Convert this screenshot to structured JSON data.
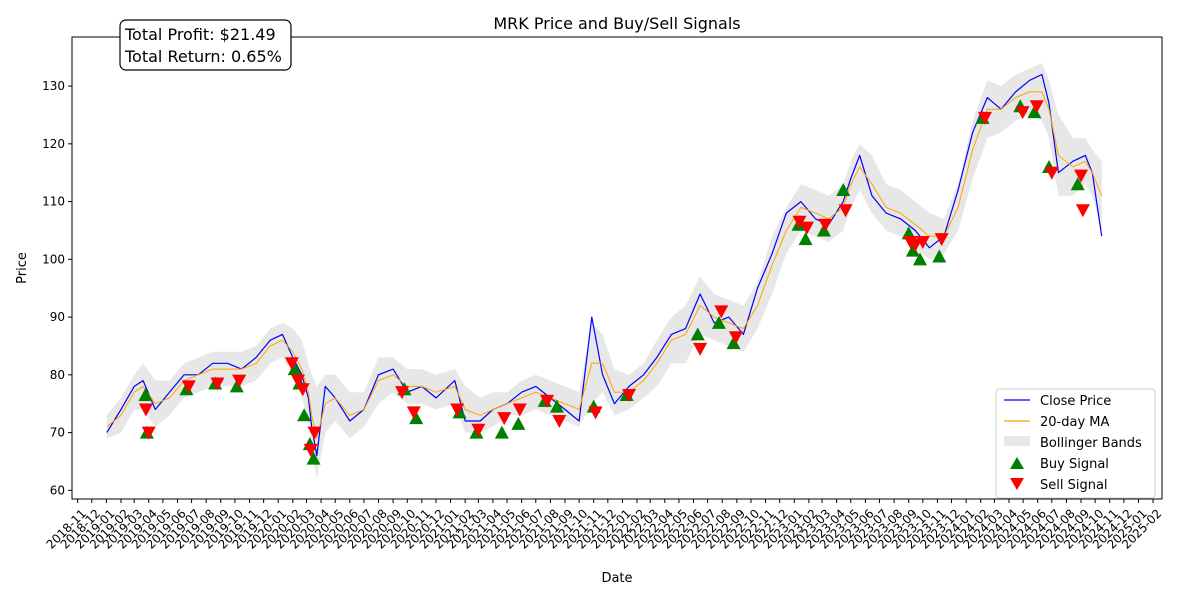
{
  "chart_data": {
    "type": "line",
    "title": "MRK Price and Buy/Sell Signals",
    "xlabel": "Date",
    "ylabel": "Price",
    "ylim": [
      58.5,
      138.5
    ],
    "yticks": [
      60,
      70,
      80,
      90,
      100,
      110,
      120,
      130
    ],
    "xlim": [
      "2018-10-20",
      "2025-02-20"
    ],
    "xticks": [
      "2018-11",
      "2018-12",
      "2019-01",
      "2019-02",
      "2019-03",
      "2019-04",
      "2019-05",
      "2019-06",
      "2019-07",
      "2019-08",
      "2019-09",
      "2019-10",
      "2019-11",
      "2019-12",
      "2020-01",
      "2020-02",
      "2020-03",
      "2020-04",
      "2020-05",
      "2020-06",
      "2020-07",
      "2020-08",
      "2020-09",
      "2020-10",
      "2020-11",
      "2020-12",
      "2021-01",
      "2021-02",
      "2021-03",
      "2021-04",
      "2021-05",
      "2021-06",
      "2021-07",
      "2021-08",
      "2021-09",
      "2021-10",
      "2021-11",
      "2021-12",
      "2022-01",
      "2022-02",
      "2022-03",
      "2022-04",
      "2022-05",
      "2022-06",
      "2022-07",
      "2022-08",
      "2022-09",
      "2022-10",
      "2022-11",
      "2022-12",
      "2023-01",
      "2023-02",
      "2023-03",
      "2023-04",
      "2023-05",
      "2023-06",
      "2023-07",
      "2023-08",
      "2023-09",
      "2023-10",
      "2023-11",
      "2023-12",
      "2024-01",
      "2024-02",
      "2024-03",
      "2024-04",
      "2024-05",
      "2024-06",
      "2024-07",
      "2024-08",
      "2024-09",
      "2024-10",
      "2024-11",
      "2024-12",
      "2025-01",
      "2025-02"
    ],
    "grid": false,
    "legend_position": "lower right",
    "summary": {
      "total_profit": "Total Profit: $21.49",
      "total_return": "Total Return: 0.65%"
    },
    "series": [
      {
        "name": "Close Price",
        "kind": "line",
        "color": "#0000ff",
        "x": [
          "2019-01-02",
          "2019-02-01",
          "2019-03-01",
          "2019-03-20",
          "2019-04-15",
          "2019-05-15",
          "2019-06-15",
          "2019-07-15",
          "2019-08-15",
          "2019-09-15",
          "2019-10-15",
          "2019-11-15",
          "2019-12-15",
          "2020-01-10",
          "2020-02-01",
          "2020-02-20",
          "2020-03-05",
          "2020-03-12",
          "2020-03-23",
          "2020-04-10",
          "2020-05-01",
          "2020-06-01",
          "2020-07-01",
          "2020-08-01",
          "2020-09-01",
          "2020-10-01",
          "2020-11-01",
          "2020-12-01",
          "2021-01-10",
          "2021-02-01",
          "2021-03-05",
          "2021-04-01",
          "2021-05-01",
          "2021-06-01",
          "2021-07-01",
          "2021-08-01",
          "2021-09-01",
          "2021-10-01",
          "2021-10-28",
          "2021-11-20",
          "2021-12-15",
          "2022-01-15",
          "2022-02-15",
          "2022-03-15",
          "2022-04-15",
          "2022-05-15",
          "2022-06-15",
          "2022-07-15",
          "2022-08-15",
          "2022-09-15",
          "2022-10-15",
          "2022-11-15",
          "2022-12-15",
          "2023-01-15",
          "2023-02-15",
          "2023-03-15",
          "2023-04-15",
          "2023-05-01",
          "2023-05-20",
          "2023-06-15",
          "2023-07-15",
          "2023-08-15",
          "2023-09-15",
          "2023-10-15",
          "2023-11-15",
          "2023-12-15",
          "2024-01-15",
          "2024-02-15",
          "2024-03-15",
          "2024-04-15",
          "2024-05-15",
          "2024-06-10",
          "2024-06-25",
          "2024-07-15",
          "2024-08-15",
          "2024-09-10",
          "2024-09-25",
          "2024-10-15"
        ],
        "values": [
          70,
          74,
          78,
          79,
          74,
          77,
          80,
          80,
          82,
          82,
          81,
          83,
          86,
          87,
          83,
          80,
          76,
          71,
          66,
          78,
          76,
          72,
          74,
          80,
          81,
          77,
          78,
          76,
          79,
          72,
          72,
          74,
          75,
          77,
          78,
          76,
          74,
          72,
          90,
          80,
          75,
          78,
          80,
          83,
          87,
          88,
          94,
          89,
          90,
          87,
          95,
          101,
          108,
          110,
          107,
          106,
          110,
          114,
          118,
          111,
          108,
          107,
          105,
          102,
          104,
          112,
          122,
          128,
          126,
          129,
          131,
          132,
          127,
          115,
          117,
          118,
          115,
          104
        ]
      },
      {
        "name": "20-day MA",
        "kind": "line",
        "color": "#ffa500",
        "x": [
          "2019-01-02",
          "2019-02-01",
          "2019-03-01",
          "2019-03-20",
          "2019-04-15",
          "2019-05-15",
          "2019-06-15",
          "2019-07-15",
          "2019-08-15",
          "2019-09-15",
          "2019-10-15",
          "2019-11-15",
          "2019-12-15",
          "2020-01-10",
          "2020-02-01",
          "2020-02-20",
          "2020-03-05",
          "2020-03-12",
          "2020-03-23",
          "2020-04-10",
          "2020-05-01",
          "2020-06-01",
          "2020-07-01",
          "2020-08-01",
          "2020-09-01",
          "2020-10-01",
          "2020-11-01",
          "2020-12-01",
          "2021-01-10",
          "2021-02-01",
          "2021-03-05",
          "2021-04-01",
          "2021-05-01",
          "2021-06-01",
          "2021-07-01",
          "2021-08-01",
          "2021-09-01",
          "2021-10-01",
          "2021-10-28",
          "2021-11-20",
          "2021-12-15",
          "2022-01-15",
          "2022-02-15",
          "2022-03-15",
          "2022-04-15",
          "2022-05-15",
          "2022-06-15",
          "2022-07-15",
          "2022-08-15",
          "2022-09-15",
          "2022-10-15",
          "2022-11-15",
          "2022-12-15",
          "2023-01-15",
          "2023-02-15",
          "2023-03-15",
          "2023-04-15",
          "2023-05-01",
          "2023-05-20",
          "2023-06-15",
          "2023-07-15",
          "2023-08-15",
          "2023-09-15",
          "2023-10-15",
          "2023-11-15",
          "2023-12-15",
          "2024-01-15",
          "2024-02-15",
          "2024-03-15",
          "2024-04-15",
          "2024-05-15",
          "2024-06-10",
          "2024-06-25",
          "2024-07-15",
          "2024-08-15",
          "2024-09-10",
          "2024-09-25",
          "2024-10-15"
        ],
        "values": [
          71,
          73,
          77,
          78,
          75,
          76,
          79,
          80,
          81,
          81,
          81,
          82,
          85,
          86,
          84,
          81,
          77,
          73,
          69,
          75,
          76,
          73,
          74,
          79,
          80,
          78,
          78,
          77,
          78,
          74,
          73,
          74,
          75,
          76,
          77,
          76,
          75,
          74,
          82,
          82,
          77,
          77,
          79,
          82,
          86,
          87,
          92,
          90,
          89,
          88,
          92,
          99,
          105,
          109,
          108,
          107,
          109,
          113,
          116,
          113,
          109,
          108,
          106,
          104,
          104,
          109,
          119,
          126,
          126,
          128,
          129,
          129,
          126,
          118,
          116,
          117,
          115,
          111
        ]
      },
      {
        "name": "Bollinger Bands",
        "kind": "band",
        "color": "#d3d3d3",
        "x": [
          "2019-01-02",
          "2019-02-01",
          "2019-03-01",
          "2019-03-20",
          "2019-04-15",
          "2019-05-15",
          "2019-06-15",
          "2019-07-15",
          "2019-08-15",
          "2019-09-15",
          "2019-10-15",
          "2019-11-15",
          "2019-12-15",
          "2020-01-10",
          "2020-02-01",
          "2020-02-20",
          "2020-03-05",
          "2020-03-12",
          "2020-03-23",
          "2020-04-10",
          "2020-05-01",
          "2020-06-01",
          "2020-07-01",
          "2020-08-01",
          "2020-09-01",
          "2020-10-01",
          "2020-11-01",
          "2020-12-01",
          "2021-01-10",
          "2021-02-01",
          "2021-03-05",
          "2021-04-01",
          "2021-05-01",
          "2021-06-01",
          "2021-07-01",
          "2021-08-01",
          "2021-09-01",
          "2021-10-01",
          "2021-10-28",
          "2021-11-20",
          "2021-12-15",
          "2022-01-15",
          "2022-02-15",
          "2022-03-15",
          "2022-04-15",
          "2022-05-15",
          "2022-06-15",
          "2022-07-15",
          "2022-08-15",
          "2022-09-15",
          "2022-10-15",
          "2022-11-15",
          "2022-12-15",
          "2023-01-15",
          "2023-02-15",
          "2023-03-15",
          "2023-04-15",
          "2023-05-01",
          "2023-05-20",
          "2023-06-15",
          "2023-07-15",
          "2023-08-15",
          "2023-09-15",
          "2023-10-15",
          "2023-11-15",
          "2023-12-15",
          "2024-01-15",
          "2024-02-15",
          "2024-03-15",
          "2024-04-15",
          "2024-05-15",
          "2024-06-10",
          "2024-06-25",
          "2024-07-15",
          "2024-08-15",
          "2024-09-10",
          "2024-09-25",
          "2024-10-15"
        ],
        "upper": [
          73,
          76,
          80,
          82,
          79,
          79,
          82,
          83,
          84,
          84,
          84,
          85,
          88,
          89,
          88,
          86,
          82,
          80,
          78,
          80,
          80,
          77,
          77,
          83,
          83,
          81,
          81,
          80,
          81,
          78,
          76,
          77,
          77,
          79,
          80,
          79,
          78,
          77,
          89,
          87,
          81,
          80,
          82,
          86,
          90,
          92,
          97,
          94,
          93,
          92,
          96,
          104,
          109,
          113,
          112,
          111,
          113,
          117,
          120,
          118,
          113,
          112,
          110,
          108,
          107,
          113,
          124,
          131,
          130,
          132,
          133,
          134,
          131,
          125,
          121,
          121,
          119,
          117
        ],
        "lower": [
          69,
          70,
          74,
          74,
          71,
          73,
          76,
          77,
          78,
          78,
          78,
          79,
          82,
          83,
          80,
          76,
          72,
          66,
          62,
          70,
          72,
          69,
          71,
          75,
          77,
          75,
          75,
          74,
          75,
          70,
          70,
          71,
          73,
          73,
          74,
          73,
          72,
          71,
          75,
          77,
          73,
          74,
          76,
          78,
          82,
          82,
          87,
          86,
          85,
          84,
          88,
          94,
          101,
          105,
          104,
          103,
          105,
          109,
          112,
          108,
          105,
          104,
          102,
          100,
          101,
          105,
          114,
          121,
          122,
          124,
          125,
          124,
          121,
          111,
          111,
          113,
          111,
          105
        ]
      }
    ],
    "buy_signals": {
      "name": "Buy Signal",
      "color": "#008000",
      "x": [
        "2019-03-25",
        "2019-03-28",
        "2019-06-20",
        "2019-08-20",
        "2019-10-05",
        "2020-02-05",
        "2020-02-15",
        "2020-02-25",
        "2020-03-08",
        "2020-03-16",
        "2020-09-25",
        "2020-10-20",
        "2021-01-20",
        "2021-02-25",
        "2021-04-20",
        "2021-05-25",
        "2021-07-20",
        "2021-08-15",
        "2021-11-01",
        "2022-01-10",
        "2022-06-10",
        "2022-07-25",
        "2022-08-25",
        "2023-01-10",
        "2023-01-25",
        "2023-03-05",
        "2023-04-15",
        "2023-09-01",
        "2023-09-10",
        "2023-09-25",
        "2023-11-05",
        "2024-02-05",
        "2024-04-25",
        "2024-05-25",
        "2024-06-25",
        "2024-08-25"
      ],
      "values": [
        76.5,
        70,
        77.5,
        78.5,
        78,
        81,
        78.5,
        73,
        68,
        65.5,
        77.5,
        72.5,
        73.5,
        70,
        70,
        71.5,
        75.5,
        74.5,
        74.5,
        76.5,
        87,
        89,
        85.5,
        106,
        103.5,
        105,
        112,
        104.5,
        101.5,
        100,
        100.5,
        124.5,
        126.5,
        125.5,
        116,
        113
      ]
    },
    "sell_signals": {
      "name": "Sell Signal",
      "color": "#ff0000",
      "x": [
        "2019-03-26",
        "2019-04-01",
        "2019-06-25",
        "2019-08-25",
        "2019-10-10",
        "2020-01-30",
        "2020-02-12",
        "2020-02-22",
        "2020-03-10",
        "2020-03-18",
        "2020-09-20",
        "2020-10-15",
        "2021-01-15",
        "2021-03-01",
        "2021-04-25",
        "2021-05-28",
        "2021-07-25",
        "2021-08-20",
        "2021-11-05",
        "2022-01-15",
        "2022-06-15",
        "2022-07-30",
        "2022-08-30",
        "2023-01-12",
        "2023-01-28",
        "2023-03-08",
        "2023-04-20",
        "2023-09-05",
        "2023-09-15",
        "2023-10-01",
        "2023-11-10",
        "2024-02-10",
        "2024-04-30",
        "2024-05-30",
        "2024-07-01",
        "2024-09-01",
        "2024-09-05"
      ],
      "values": [
        74,
        70,
        78,
        78.5,
        79,
        82,
        79,
        77.5,
        67,
        70,
        77,
        73.5,
        74,
        70.5,
        72.5,
        74,
        75.5,
        72,
        73.5,
        76.5,
        84.5,
        91,
        86.5,
        106.5,
        105.5,
        106,
        108.5,
        103,
        102.5,
        103,
        103.5,
        124.5,
        125.5,
        126.5,
        115,
        114.5,
        108.5
      ]
    }
  }
}
